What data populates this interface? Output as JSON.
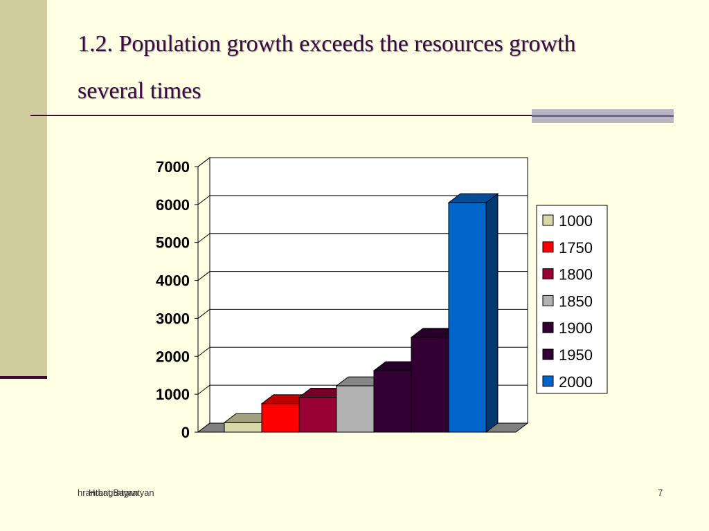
{
  "slide": {
    "title": "1.2. Population growth exceeds the resources growth several times",
    "footer_left_a": "hrantbagratyan",
    "footer_left_b": "Hrant Bagratyan",
    "page_number": "7"
  },
  "colors": {
    "background": "#FFFFE3",
    "side_band": "#D0CC9E",
    "accent": "#3E0A38"
  },
  "chart_data": {
    "type": "bar",
    "title": "",
    "xlabel": "",
    "ylabel": "",
    "ylim": [
      0,
      7000
    ],
    "y_ticks": [
      "0",
      "1000",
      "2000",
      "3000",
      "4000",
      "5000",
      "6000",
      "7000"
    ],
    "grid": true,
    "three_d": true,
    "legend_position": "right",
    "series": [
      {
        "name": "1000",
        "value": 250,
        "color": "#D8D8A8"
      },
      {
        "name": "1750",
        "value": 750,
        "color": "#FF0000"
      },
      {
        "name": "1800",
        "value": 920,
        "color": "#990033"
      },
      {
        "name": "1850",
        "value": 1220,
        "color": "#B2B2B2"
      },
      {
        "name": "1900",
        "value": 1620,
        "color": "#330033"
      },
      {
        "name": "1950",
        "value": 2500,
        "color": "#330033"
      },
      {
        "name": "2000",
        "value": 6050,
        "color": "#0066CC"
      }
    ]
  }
}
